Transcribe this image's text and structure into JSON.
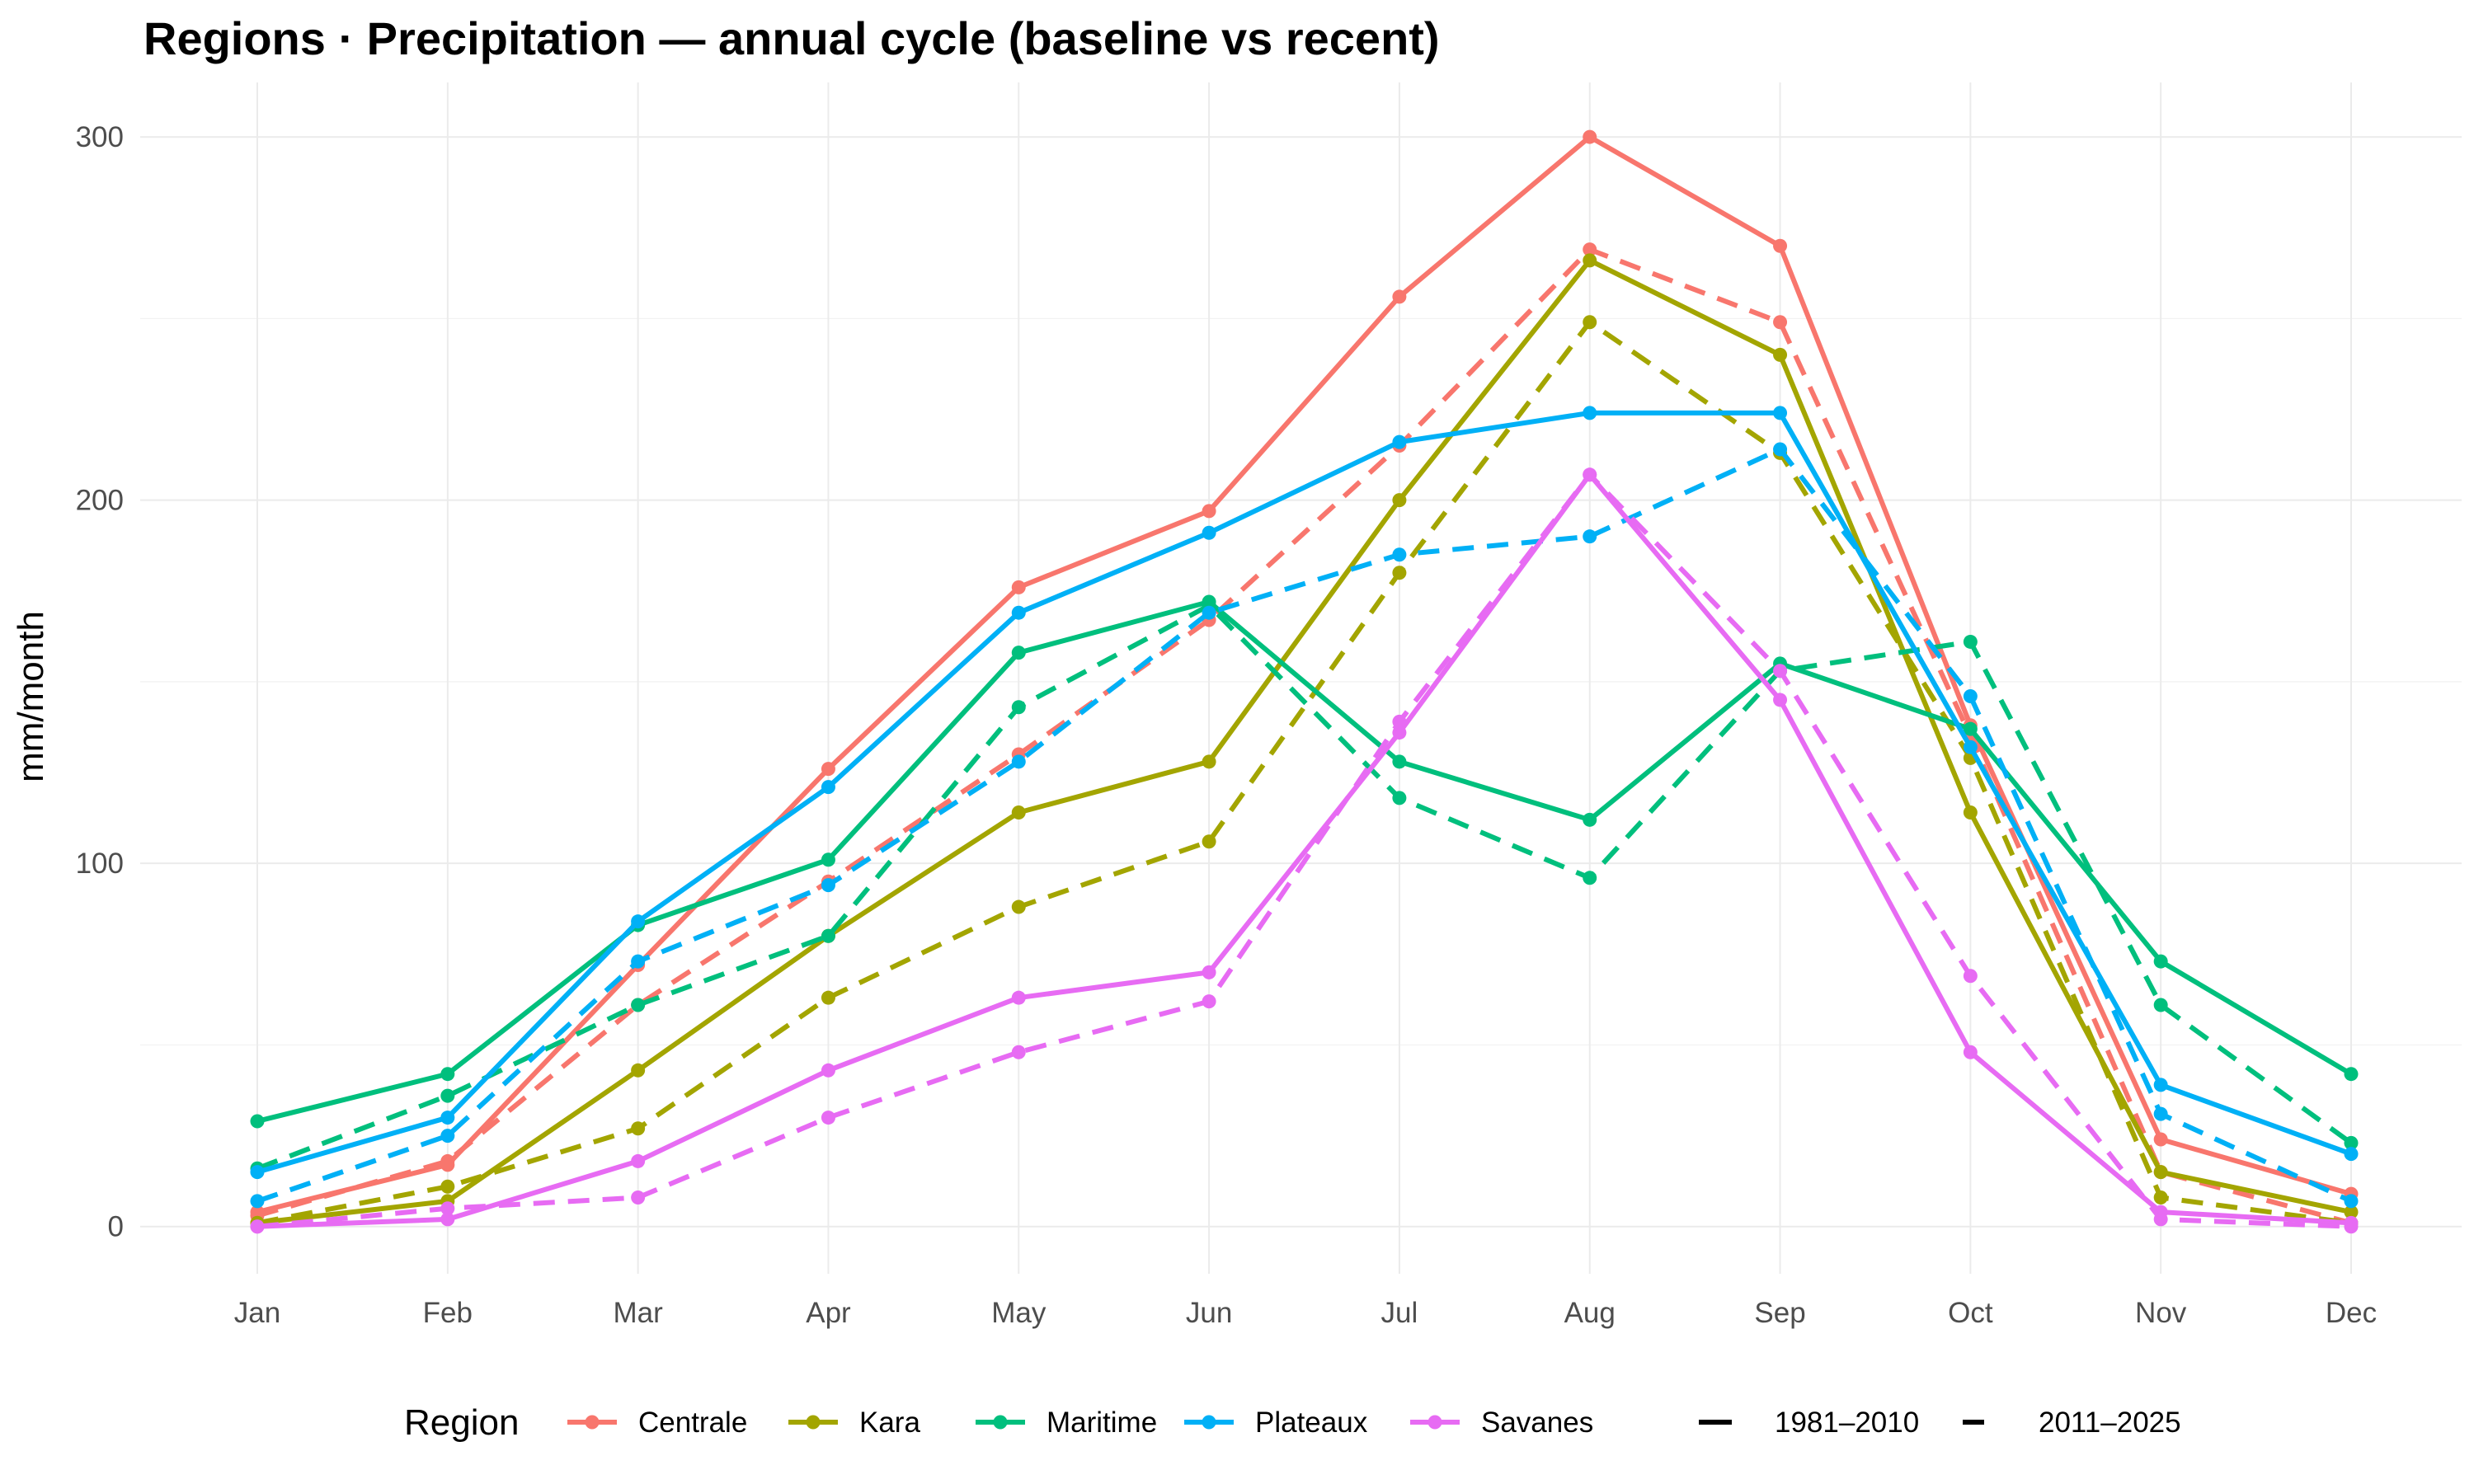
{
  "chart_data": {
    "type": "line",
    "title": "Regions · Precipitation — annual cycle (baseline vs recent)",
    "xlabel": "",
    "ylabel": "mm/month",
    "categories": [
      "Jan",
      "Feb",
      "Mar",
      "Apr",
      "May",
      "Jun",
      "Jul",
      "Aug",
      "Sep",
      "Oct",
      "Nov",
      "Dec"
    ],
    "ylim": [
      -13,
      315
    ],
    "yticks": [
      0,
      100,
      200,
      300
    ],
    "grid": true,
    "legend": {
      "position": "bottom",
      "color_title": "Region",
      "linetypes": [
        {
          "label": "1981–2010",
          "dash": "solid"
        },
        {
          "label": "2011–2025",
          "dash": "dashed"
        }
      ]
    },
    "series": [
      {
        "name": "Centrale",
        "period": "1981–2010",
        "dash": "solid",
        "color": "#F8766D",
        "values": [
          4,
          17,
          72,
          126,
          176,
          197,
          256,
          300,
          270,
          138,
          24,
          9
        ]
      },
      {
        "name": "Centrale",
        "period": "2011–2025",
        "dash": "dashed",
        "color": "#F8766D",
        "values": [
          3,
          18,
          61,
          95,
          130,
          167,
          215,
          269,
          249,
          135,
          15,
          1
        ]
      },
      {
        "name": "Kara",
        "period": "1981–2010",
        "dash": "solid",
        "color": "#A3A500",
        "values": [
          1,
          7,
          43,
          80,
          114,
          128,
          200,
          266,
          240,
          114,
          15,
          4
        ]
      },
      {
        "name": "Kara",
        "period": "2011–2025",
        "dash": "dashed",
        "color": "#A3A500",
        "values": [
          1,
          11,
          27,
          63,
          88,
          106,
          180,
          249,
          213,
          129,
          8,
          1
        ]
      },
      {
        "name": "Maritime",
        "period": "1981–2010",
        "dash": "solid",
        "color": "#00BF7D",
        "values": [
          29,
          42,
          83,
          101,
          158,
          172,
          128,
          112,
          155,
          137,
          73,
          42
        ]
      },
      {
        "name": "Maritime",
        "period": "2011–2025",
        "dash": "dashed",
        "color": "#00BF7D",
        "values": [
          16,
          36,
          61,
          80,
          143,
          171,
          118,
          96,
          153,
          161,
          61,
          23
        ]
      },
      {
        "name": "Plateaux",
        "period": "1981–2010",
        "dash": "solid",
        "color": "#00B0F6",
        "values": [
          15,
          30,
          84,
          121,
          169,
          191,
          216,
          224,
          224,
          132,
          39,
          20
        ]
      },
      {
        "name": "Plateaux",
        "period": "2011–2025",
        "dash": "dashed",
        "color": "#00B0F6",
        "values": [
          7,
          25,
          73,
          94,
          128,
          169,
          185,
          190,
          214,
          146,
          31,
          7
        ]
      },
      {
        "name": "Savanes",
        "period": "1981–2010",
        "dash": "solid",
        "color": "#E76BF3",
        "values": [
          0,
          2,
          18,
          43,
          63,
          70,
          136,
          207,
          145,
          48,
          4,
          1
        ]
      },
      {
        "name": "Savanes",
        "period": "2011–2025",
        "dash": "dashed",
        "color": "#E76BF3",
        "values": [
          0,
          5,
          8,
          30,
          48,
          62,
          139,
          207,
          153,
          69,
          2,
          0
        ]
      }
    ]
  }
}
